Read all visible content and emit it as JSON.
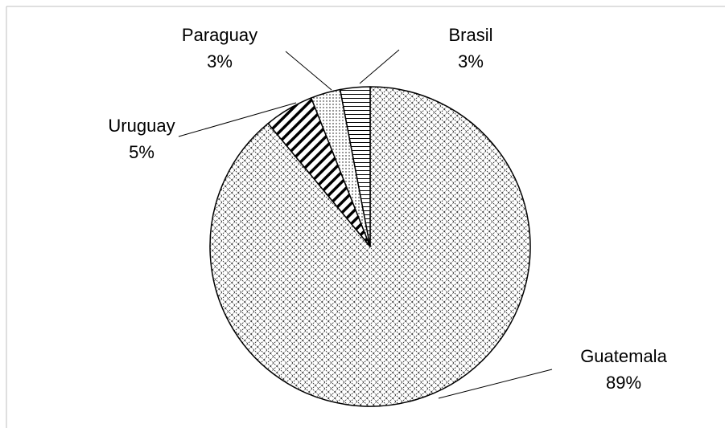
{
  "chart_data": {
    "type": "pie",
    "categories": [
      "Guatemala",
      "Uruguay",
      "Paraguay",
      "Brasil"
    ],
    "values": [
      89,
      5,
      3,
      3
    ],
    "value_labels": [
      "89%",
      "5%",
      "3%",
      "3%"
    ]
  }
}
